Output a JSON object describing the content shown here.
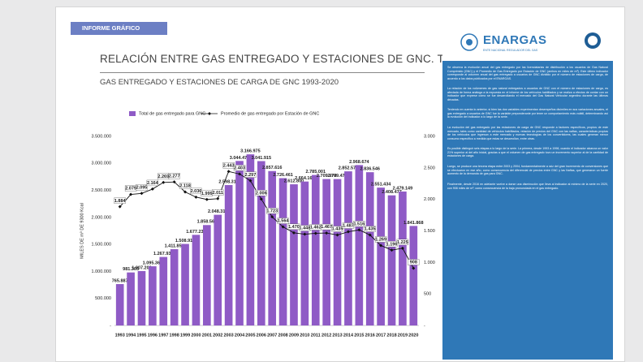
{
  "header": {
    "tag": "INFORME GRÁFICO",
    "title": "RELACIÓN ENTRE GAS ENTREGADO Y ESTACIONES DE GNC. TOTAL PAÍS",
    "subtitle": "GAS ENTREGADO Y ESTACIONES DE CARGA DE GNC 1993-2020"
  },
  "sidebar": {
    "logo": "ENARGAS",
    "logo_sub": "ENTE NACIONAL REGULADOR DEL GAS",
    "paragraphs": [
      "Se observa la evolución anual del gas entregado por las licenciatarias de distribución a los usuarios de Gas Natural Comprimido (GNC) y el Promedio de Gas Entregado por Estación de GNC (ambos en miles de m³). Este último indicador corresponde al volumen anual del gas entregado a usuarios de GNC dividido por el número de estaciones de carga, de acuerdo a los datos publicados por el ENARGAS.",
      "La relación de los volúmenes de gas natural entregados a usuarios de GNC con el número de estaciones de carga, es afectada de forma análoga a la expuesta en el informe de los vehículos habilitados y se realiza a efectos de contar con un indicador que exprese cómo se fue desarrollando el mercado del Gas Natural Vehicular argentino durante las últimas décadas.",
      "Teniendo en cuenta lo anterior, si bien las dos variables experimentan desempeños disímiles en sus variaciones anuales, el gas entregado a usuarios de GNC fue la variable preponderante por tener un comportamiento más volátil, determinando así la evolución del indicador a lo largo de la serie.",
      "La evolución del gas entregado por las estaciones de carga de GNC responde a factores específicos, propios de este mercado, tales como cantidad de vehículos habilitados, relación de precios del GNC con las naftas, características propias de los vehículos que ingresan a este mercado y nuevas tecnologías de los convertidores, las cuales generan menor consumo específico a medida que estas se desarrollan, entre otras.",
      "Es posible distinguir seis etapas a lo largo de la serie. La primera, desde 1993 a 1998, cuando el indicador alcanza un valor 21% superior al del año inicial, gracias a que el volumen de gas entregado tuvo un incremento superior al de la cantidad de estaciones de carga.",
      "Luego, se produce una tercera etapa entre 2003 y 2004, fundamentalmente a raíz del gran incremento de conversiones que se efectuaron en ese año, como consecuencia del diferencial de precios entre GNC y las Naftas, que generaron un fuerte aumento de la demanda de gas para GNC.",
      "Finalmente, desde 2016 en adelante vuelve a darse una disminución que lleva al indicador al mínimo de la serie en 2020, con 908 miles de m³, como consecuencia de la baja pronunciada en el gas entregado."
    ]
  },
  "chart_data": {
    "type": "bar",
    "categories": [
      "1993",
      "1994",
      "1995",
      "1996",
      "1997",
      "1998",
      "1999",
      "2000",
      "2001",
      "2002",
      "2003",
      "2004",
      "2005",
      "2006",
      "2007",
      "2008",
      "2009",
      "2010",
      "2011",
      "2012",
      "2013",
      "2014",
      "2015",
      "2016",
      "2017",
      "2018",
      "2019",
      "2020"
    ],
    "series": [
      {
        "name": "Total de gas entregado para GNC",
        "type": "bar",
        "axis": "y",
        "color": "#8f5bc6",
        "values": [
          765887,
          981305,
          1007209,
          1095366,
          1267936,
          1411854,
          1508915,
          1677234,
          1858565,
          2048319,
          2598312,
          3044477,
          3166975,
          3041915,
          2857616,
          2726461,
          2612800,
          2664160,
          2785001,
          2709979,
          2709475,
          2852577,
          2968674,
          2836546,
          2551434,
          2408477,
          2479149,
          1841868
        ],
        "value_labels": [
          "765.887",
          "981.305",
          "1.007.209",
          "1.095.366",
          "1.267.936",
          "1.411.854",
          "1.508.915",
          "1.677.234",
          "1.858.565",
          "2.048.319",
          "2.598.312",
          "3.044.477",
          "3.166.975",
          "3.041.915",
          "2.857.616",
          "2.726.461",
          "2.612.800",
          "2.664.160",
          "2.785.001",
          "2.709.979",
          "2.709.475",
          "2.852.577",
          "2.968.674",
          "2.836.546",
          "2.551.434",
          "2.408.477",
          "2.479.149",
          "1.841.868"
        ]
      },
      {
        "name": "Promedio de gas entregado por Estación de GNC",
        "type": "line",
        "axis": "y2",
        "color": "#111111",
        "values": [
          1884,
          2079,
          2095,
          2164,
          2269,
          2277,
          2118,
          2036,
          1999,
          2011,
          2443,
          2403,
          2297,
          2006,
          1723,
          1564,
          1470,
          1448,
          1462,
          1467,
          1435,
          1487,
          1516,
          1435,
          1269,
          1196,
          1225,
          908
        ],
        "value_labels": [
          "1.884",
          "2.079",
          "2.095",
          "2.164",
          "2.269",
          "2.277",
          "2.118",
          "2.036",
          "1.999",
          "2.011",
          "2.443",
          "2.403",
          "2.297",
          "2.006",
          "1.723",
          "1.564",
          "1.470",
          "1.448",
          "1.462",
          "1.467",
          "1.435",
          "1.487",
          "1.516",
          "1.435",
          "1.269",
          "1.196",
          "1.225",
          "908"
        ]
      }
    ],
    "ylabel": "MILES DE m³ DE 9300 Kcal",
    "y2label": "COEFICIENTE DE RELACIÓN (MILES DE m³ DE 9300 Kcal)",
    "ylim": [
      0,
      3500000
    ],
    "yticks": [
      {
        "value": 0,
        "label": "-"
      },
      {
        "value": 500000,
        "label": "500.000"
      },
      {
        "value": 1000000,
        "label": "1.000.000"
      },
      {
        "value": 1500000,
        "label": "1.500.000"
      },
      {
        "value": 2000000,
        "label": "2.000.000"
      },
      {
        "value": 2500000,
        "label": "2.500.000"
      },
      {
        "value": 3000000,
        "label": "3.000.000"
      },
      {
        "value": 3500000,
        "label": "3.500.000"
      }
    ],
    "y2lim": [
      0,
      3000
    ],
    "y2ticks": [
      {
        "value": 0,
        "label": "-"
      },
      500,
      {
        "value": 1000,
        "label": "1.000"
      },
      {
        "value": 1500,
        "label": "1.500"
      },
      {
        "value": 2000,
        "label": "2.000"
      },
      {
        "value": 2500,
        "label": "2.500"
      },
      {
        "value": 3000,
        "label": "3.000"
      }
    ],
    "grid": false,
    "legend": "top"
  }
}
